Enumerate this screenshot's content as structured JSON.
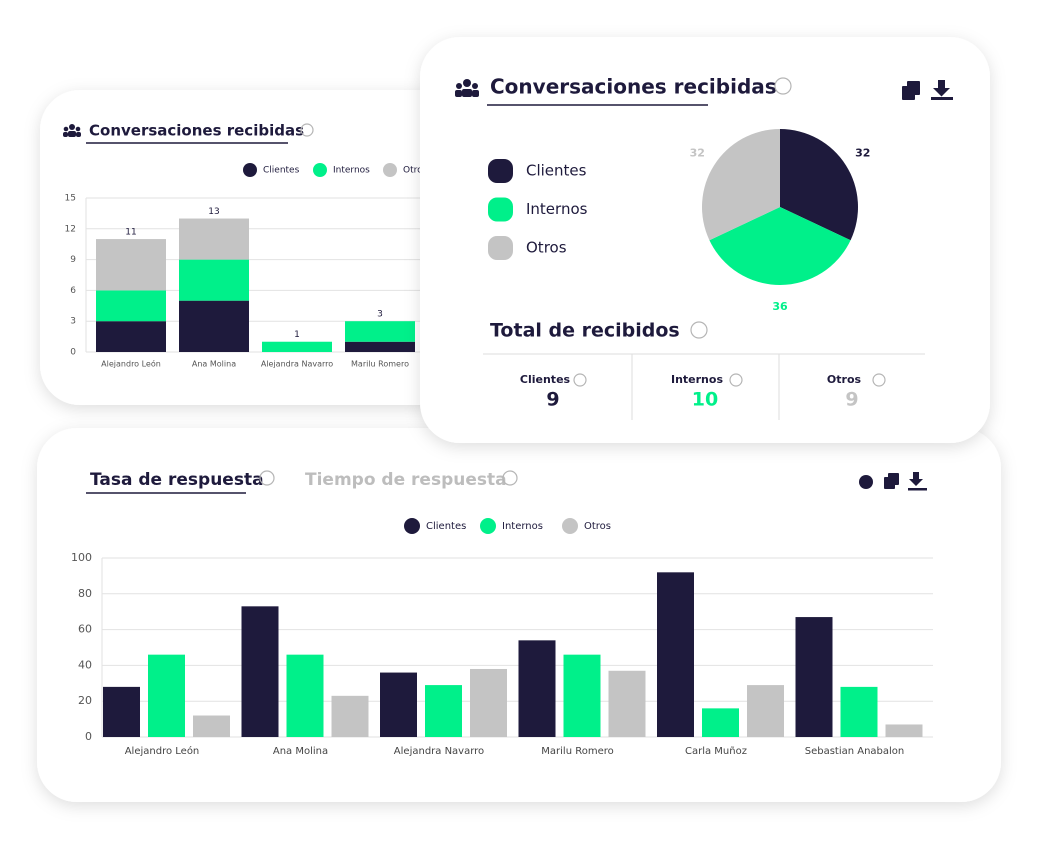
{
  "chart_data": [
    {
      "type": "stacked-bar",
      "title": "Conversaciones recibidas",
      "categories": [
        "Alejandro León",
        "Ana Molina",
        "Alejandra Navarro",
        "Marilu Romero"
      ],
      "series": [
        {
          "name": "Clientes",
          "color": "#1e1a3c",
          "values": [
            3,
            5,
            0,
            1
          ]
        },
        {
          "name": "Internos",
          "color": "#00f08a",
          "values": [
            3,
            4,
            1,
            2
          ]
        },
        {
          "name": "Otros",
          "color": "#c4c4c4",
          "values": [
            5,
            4,
            0,
            0
          ]
        }
      ],
      "totals": [
        11,
        13,
        1,
        3
      ],
      "ylim": [
        0,
        15
      ],
      "yticks": [
        0,
        3,
        6,
        9,
        12,
        15
      ],
      "grid": true
    },
    {
      "type": "pie",
      "title": "Conversaciones recibidas",
      "categories": [
        "Clientes",
        "Internos",
        "Otros"
      ],
      "values": [
        32,
        36,
        32
      ],
      "colors": [
        "#1e1a3c",
        "#00f08a",
        "#c4c4c4"
      ]
    },
    {
      "type": "grouped-bar",
      "tabs": [
        "Tasa de respuesta",
        "Tiempo de respuesta"
      ],
      "categories": [
        "Alejandro León",
        "Ana Molina",
        "Alejandra Navarro",
        "Marilu Romero",
        "Carla Muñoz",
        "Sebastian Anabalon"
      ],
      "series": [
        {
          "name": "Clientes",
          "color": "#1e1a3c",
          "values": [
            28,
            73,
            36,
            54,
            92,
            67
          ]
        },
        {
          "name": "Internos",
          "color": "#00f08a",
          "values": [
            46,
            46,
            29,
            46,
            16,
            28
          ]
        },
        {
          "name": "Otros",
          "color": "#c4c4c4",
          "values": [
            12,
            23,
            38,
            37,
            29,
            7
          ]
        }
      ],
      "ylim": [
        0,
        100
      ],
      "yticks": [
        0,
        20,
        40,
        60,
        80,
        100
      ],
      "grid": true
    }
  ],
  "summary": {
    "title": "Total de recibidos",
    "items": [
      {
        "label": "Clientes",
        "value": 9,
        "color": "#1e1a3c"
      },
      {
        "label": "Internos",
        "value": 10,
        "color": "#00f08a"
      },
      {
        "label": "Otros",
        "value": 9,
        "color": "#c4c4c4"
      }
    ]
  }
}
